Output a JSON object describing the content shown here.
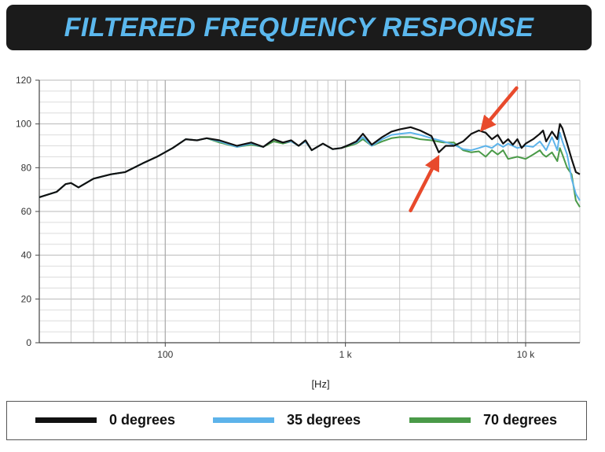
{
  "title": "FILTERED FREQUENCY RESPONSE",
  "colors": {
    "title_bg": "#1b1b1b",
    "title_text": "#5bb8ee",
    "grid": "#c8c8c8",
    "annotation_arrow": "#e84a2c"
  },
  "legend": [
    {
      "label": "0 degrees",
      "color": "#111111"
    },
    {
      "label": "35 degrees",
      "color": "#5db3ea"
    },
    {
      "label": "70 degrees",
      "color": "#4a9a48"
    }
  ],
  "chart_data": {
    "type": "line",
    "title": "FILTERED FREQUENCY RESPONSE",
    "xlabel": "[Hz]",
    "ylabel": "",
    "xscale": "log",
    "xlim": [
      20,
      20000
    ],
    "ylim": [
      0,
      120
    ],
    "yticks": [
      0,
      20,
      40,
      60,
      80,
      100,
      120
    ],
    "xtick_labels": [
      {
        "value": 100,
        "label": "100"
      },
      {
        "value": 1000,
        "label": "1 k"
      },
      {
        "value": 10000,
        "label": "10 k"
      }
    ],
    "grid": true,
    "legend_position": "bottom",
    "series": [
      {
        "name": "0 degrees",
        "color": "#111111",
        "points": [
          [
            20,
            66.5
          ],
          [
            25,
            69
          ],
          [
            28,
            72.5
          ],
          [
            30,
            73
          ],
          [
            33,
            71
          ],
          [
            40,
            75
          ],
          [
            50,
            77
          ],
          [
            60,
            78
          ],
          [
            75,
            82
          ],
          [
            90,
            85
          ],
          [
            110,
            89
          ],
          [
            130,
            93
          ],
          [
            150,
            92.5
          ],
          [
            170,
            93.5
          ],
          [
            200,
            92.5
          ],
          [
            250,
            90
          ],
          [
            300,
            91.5
          ],
          [
            350,
            89.5
          ],
          [
            400,
            93
          ],
          [
            450,
            91.5
          ],
          [
            500,
            92.5
          ],
          [
            550,
            90
          ],
          [
            600,
            92.5
          ],
          [
            650,
            88
          ],
          [
            750,
            91
          ],
          [
            850,
            88.5
          ],
          [
            950,
            89
          ],
          [
            1050,
            90.5
          ],
          [
            1150,
            92
          ],
          [
            1250,
            95.5
          ],
          [
            1400,
            90.5
          ],
          [
            1600,
            94
          ],
          [
            1800,
            96.5
          ],
          [
            2000,
            97.5
          ],
          [
            2300,
            98.5
          ],
          [
            2600,
            97
          ],
          [
            3000,
            94.5
          ],
          [
            3300,
            87
          ],
          [
            3600,
            90
          ],
          [
            4000,
            90
          ],
          [
            4500,
            92
          ],
          [
            5000,
            95.5
          ],
          [
            5500,
            97
          ],
          [
            6000,
            96
          ],
          [
            6500,
            93
          ],
          [
            7000,
            95
          ],
          [
            7500,
            91
          ],
          [
            8000,
            93
          ],
          [
            8500,
            90.5
          ],
          [
            9000,
            93
          ],
          [
            9500,
            89
          ],
          [
            10000,
            91
          ],
          [
            11000,
            93
          ],
          [
            12000,
            95.5
          ],
          [
            12500,
            97
          ],
          [
            13000,
            92
          ],
          [
            14000,
            96.5
          ],
          [
            15000,
            93
          ],
          [
            15500,
            100
          ],
          [
            16000,
            98
          ],
          [
            17000,
            91
          ],
          [
            18000,
            84
          ],
          [
            19000,
            78
          ],
          [
            20000,
            77
          ]
        ]
      },
      {
        "name": "35 degrees",
        "color": "#5db3ea",
        "points": [
          [
            20,
            66.5
          ],
          [
            25,
            69
          ],
          [
            28,
            72.5
          ],
          [
            30,
            73
          ],
          [
            33,
            71
          ],
          [
            40,
            75
          ],
          [
            50,
            77
          ],
          [
            60,
            78
          ],
          [
            75,
            82
          ],
          [
            90,
            85
          ],
          [
            110,
            89
          ],
          [
            130,
            93
          ],
          [
            150,
            92.5
          ],
          [
            170,
            93.5
          ],
          [
            200,
            92
          ],
          [
            250,
            89.5
          ],
          [
            300,
            91
          ],
          [
            350,
            89.5
          ],
          [
            400,
            93
          ],
          [
            450,
            91.5
          ],
          [
            500,
            92
          ],
          [
            550,
            90
          ],
          [
            600,
            92
          ],
          [
            650,
            88
          ],
          [
            750,
            91
          ],
          [
            850,
            88.5
          ],
          [
            950,
            89
          ],
          [
            1050,
            90.5
          ],
          [
            1150,
            91.5
          ],
          [
            1250,
            94
          ],
          [
            1400,
            90
          ],
          [
            1600,
            93
          ],
          [
            1800,
            95
          ],
          [
            2000,
            95.5
          ],
          [
            2300,
            96
          ],
          [
            2600,
            95
          ],
          [
            3000,
            93.5
          ],
          [
            3500,
            92
          ],
          [
            4000,
            90.5
          ],
          [
            4500,
            88.5
          ],
          [
            5000,
            88
          ],
          [
            5500,
            89
          ],
          [
            6000,
            90
          ],
          [
            6500,
            89
          ],
          [
            7000,
            91
          ],
          [
            7500,
            89.5
          ],
          [
            8000,
            91
          ],
          [
            9000,
            89
          ],
          [
            10000,
            90
          ],
          [
            11000,
            89.5
          ],
          [
            12000,
            92
          ],
          [
            12500,
            90
          ],
          [
            13000,
            88
          ],
          [
            14000,
            94
          ],
          [
            15000,
            88
          ],
          [
            15500,
            96
          ],
          [
            16000,
            92
          ],
          [
            17000,
            86
          ],
          [
            18000,
            75
          ],
          [
            19000,
            68
          ],
          [
            20000,
            65
          ]
        ]
      },
      {
        "name": "70 degrees",
        "color": "#4a9a48",
        "points": [
          [
            20,
            66.5
          ],
          [
            25,
            69
          ],
          [
            28,
            72.5
          ],
          [
            30,
            73
          ],
          [
            33,
            71
          ],
          [
            40,
            75
          ],
          [
            50,
            77
          ],
          [
            60,
            78
          ],
          [
            75,
            82
          ],
          [
            90,
            85
          ],
          [
            110,
            89
          ],
          [
            130,
            93
          ],
          [
            150,
            92.5
          ],
          [
            170,
            93.5
          ],
          [
            200,
            91.5
          ],
          [
            250,
            89.5
          ],
          [
            300,
            90.5
          ],
          [
            350,
            89.5
          ],
          [
            400,
            92
          ],
          [
            450,
            91
          ],
          [
            500,
            92
          ],
          [
            550,
            90
          ],
          [
            600,
            92
          ],
          [
            650,
            88
          ],
          [
            750,
            91
          ],
          [
            850,
            88.5
          ],
          [
            950,
            89
          ],
          [
            1050,
            90
          ],
          [
            1150,
            91
          ],
          [
            1250,
            93
          ],
          [
            1400,
            90
          ],
          [
            1600,
            92
          ],
          [
            1800,
            93.5
          ],
          [
            2000,
            94
          ],
          [
            2300,
            94
          ],
          [
            2600,
            93
          ],
          [
            3000,
            92.5
          ],
          [
            3500,
            91.5
          ],
          [
            4000,
            91.5
          ],
          [
            4500,
            88
          ],
          [
            5000,
            87
          ],
          [
            5500,
            87.5
          ],
          [
            6000,
            85
          ],
          [
            6500,
            88
          ],
          [
            7000,
            86
          ],
          [
            7500,
            88
          ],
          [
            8000,
            84
          ],
          [
            9000,
            85
          ],
          [
            10000,
            84
          ],
          [
            11000,
            86
          ],
          [
            12000,
            88
          ],
          [
            12500,
            86
          ],
          [
            13000,
            85
          ],
          [
            14000,
            87
          ],
          [
            15000,
            83
          ],
          [
            15500,
            89
          ],
          [
            16000,
            86
          ],
          [
            17000,
            80
          ],
          [
            18000,
            77
          ],
          [
            19000,
            65
          ],
          [
            20000,
            62
          ]
        ]
      }
    ],
    "annotations": [
      {
        "type": "arrow",
        "color": "#e84a2c",
        "points_to": [
          5500,
          97
        ]
      },
      {
        "type": "arrow",
        "color": "#e84a2c",
        "points_to": [
          3300,
          87
        ]
      }
    ]
  }
}
